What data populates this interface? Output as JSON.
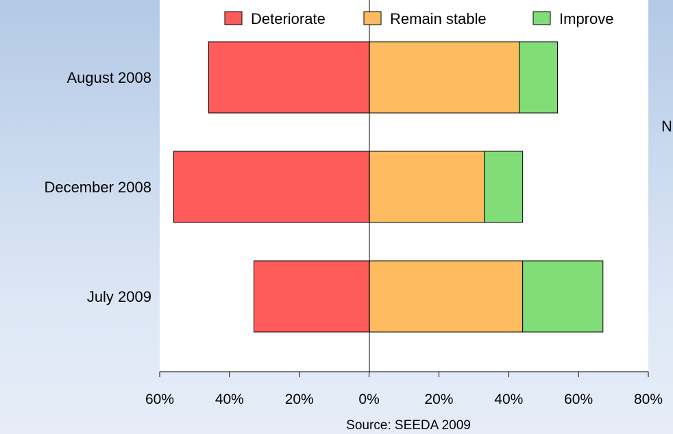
{
  "chart_data": {
    "type": "bar",
    "orientation": "horizontal",
    "stacked": true,
    "categories": [
      "August 2008",
      "December 2008",
      "July 2009"
    ],
    "series": [
      {
        "name": "Deteriorate",
        "values": [
          -46,
          -56,
          -33
        ],
        "color": "#ff5b5b"
      },
      {
        "name": "Remain stable",
        "values": [
          43,
          33,
          44
        ],
        "color": "#ffbb5f"
      },
      {
        "name": "Improve",
        "values": [
          11,
          11,
          23
        ],
        "color": "#80dd77"
      }
    ],
    "xlim": [
      -60,
      80
    ],
    "xticks": [
      -60,
      -40,
      -20,
      0,
      20,
      40,
      60,
      80
    ],
    "xtick_labels": [
      "60%",
      "40%",
      "20%",
      "0%",
      "20%",
      "40%",
      "60%",
      "80%"
    ],
    "source": "Source: SEEDA 2009",
    "legend_position": "top",
    "grid": false
  },
  "side_text": "N"
}
